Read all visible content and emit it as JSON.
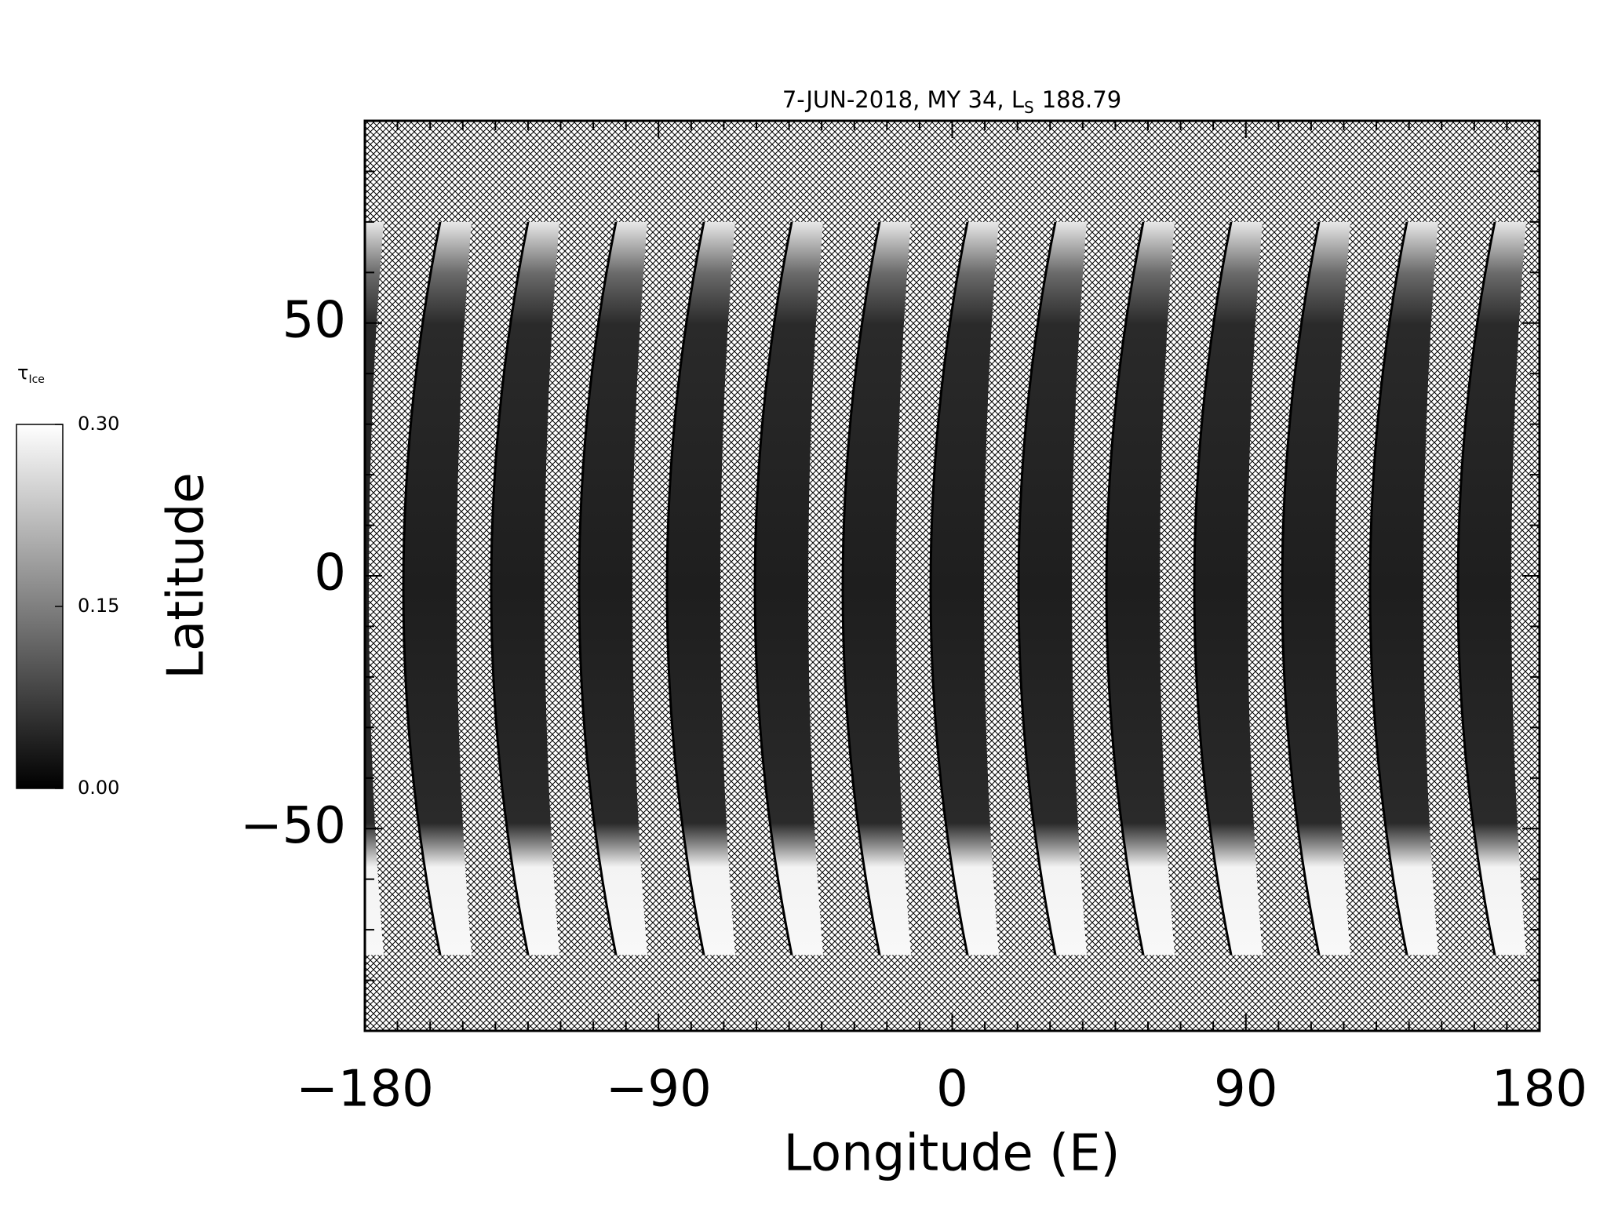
{
  "chart_data": {
    "type": "map",
    "title": "7-JUN-2018, MY 34,  L",
    "title_subscript": "S",
    "title_suffix": "188.79",
    "x_label": "Longitude (E)",
    "y_label": "Latitude",
    "xlim": [
      -180,
      180
    ],
    "xticks": [
      {
        "value": -180,
        "label": "−180"
      },
      {
        "value": -90,
        "label": "−90"
      },
      0,
      90,
      180
    ],
    "xminorticks": [
      -170,
      -160,
      -150,
      -140,
      -130,
      -120,
      -110,
      -100,
      -80,
      -70,
      -60,
      -50,
      -40,
      -30,
      -20,
      -10,
      10,
      20,
      30,
      40,
      50,
      60,
      70,
      80,
      100,
      110,
      120,
      130,
      140,
      150,
      160,
      170
    ],
    "ylim": [
      -90,
      90
    ],
    "yticks": [
      {
        "value": -50,
        "label": "−50"
      },
      0,
      50
    ],
    "yminorticks": [
      -80,
      -70,
      -60,
      -40,
      -30,
      -20,
      -10,
      10,
      20,
      30,
      40,
      60,
      70,
      80
    ],
    "colorbar": {
      "label": "τ",
      "label_subscript": "Ice",
      "lim": [
        0,
        0.3
      ],
      "ticks": [
        {
          "value": 0,
          "label": "0.00"
        },
        {
          "value": 0.15,
          "label": "0.15"
        },
        {
          "value": 0.3,
          "label": "0.30"
        }
      ],
      "colors": [
        "#000000",
        "#ffffff"
      ]
    }
  }
}
